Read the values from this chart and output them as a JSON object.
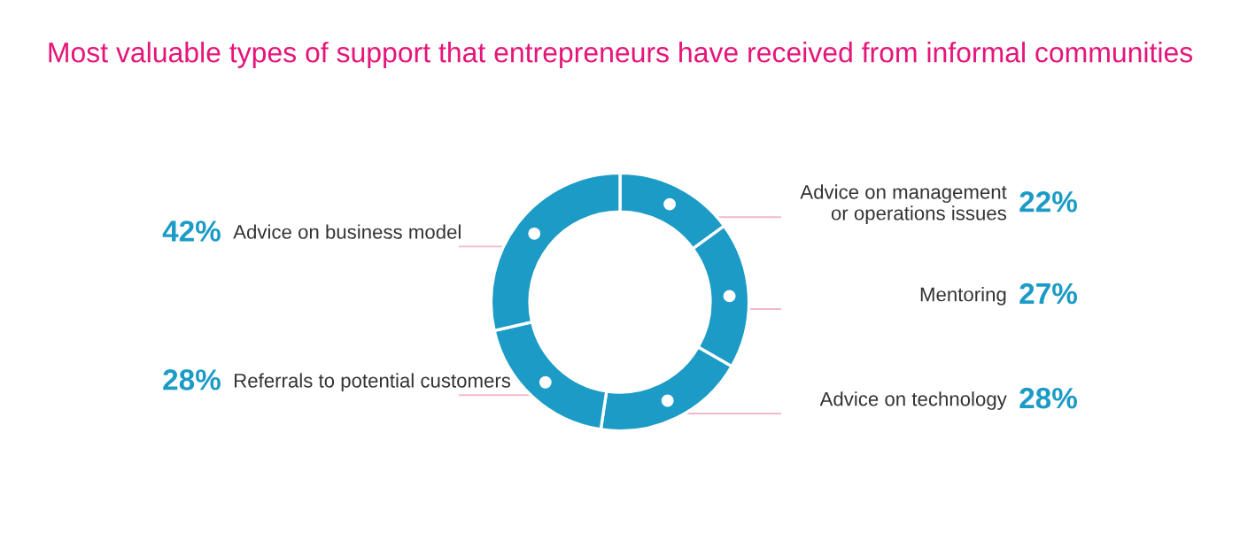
{
  "chart_data": {
    "type": "donut",
    "title": "Most valuable types of support that entrepreneurs have received from informal communities",
    "categories": [
      "Advice on management\nor operations issues",
      "Mentoring",
      "Advice on technology",
      "Referrals to potential customers",
      "Advice on business model"
    ],
    "values": [
      22,
      27,
      28,
      28,
      42
    ],
    "value_labels": [
      "22%",
      "27%",
      "28%",
      "28%",
      "42%"
    ],
    "colors": [
      "#1b9bc6",
      "#1b9bc6",
      "#1b9bc6",
      "#1b9bc6",
      "#1b9bc6"
    ]
  }
}
